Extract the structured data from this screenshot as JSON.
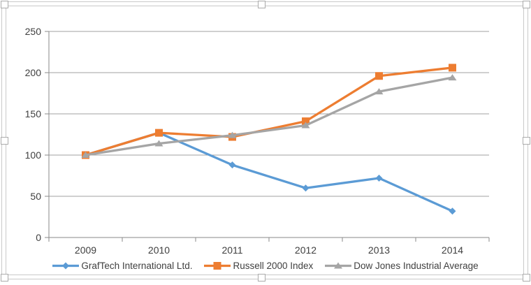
{
  "chart_data": {
    "type": "line",
    "title": "",
    "xlabel": "",
    "ylabel": "",
    "categories": [
      "2009",
      "2010",
      "2011",
      "2012",
      "2013",
      "2014"
    ],
    "series": [
      {
        "name": "GrafTech International Ltd.",
        "marker": "diamond",
        "color": "#5B9BD5",
        "values": [
          100,
          127,
          88,
          60,
          72,
          32
        ]
      },
      {
        "name": "Russell 2000 Index",
        "marker": "square",
        "color": "#ED7D31",
        "values": [
          100,
          127,
          122,
          141,
          196,
          206
        ]
      },
      {
        "name": "Dow Jones Industrial Average",
        "marker": "triangle",
        "color": "#A5A5A5",
        "values": [
          100,
          114,
          124,
          136,
          177,
          194
        ]
      }
    ],
    "ylim": [
      0,
      250
    ],
    "y_ticks": [
      0,
      50,
      100,
      150,
      200,
      250
    ],
    "grid": true,
    "legend_position": "bottom"
  },
  "colors": {
    "gridline": "#a2a2a2",
    "axis": "#8a8a8a",
    "tick_label": "#3f3f3f",
    "selection_border": "#c9c9c9"
  }
}
